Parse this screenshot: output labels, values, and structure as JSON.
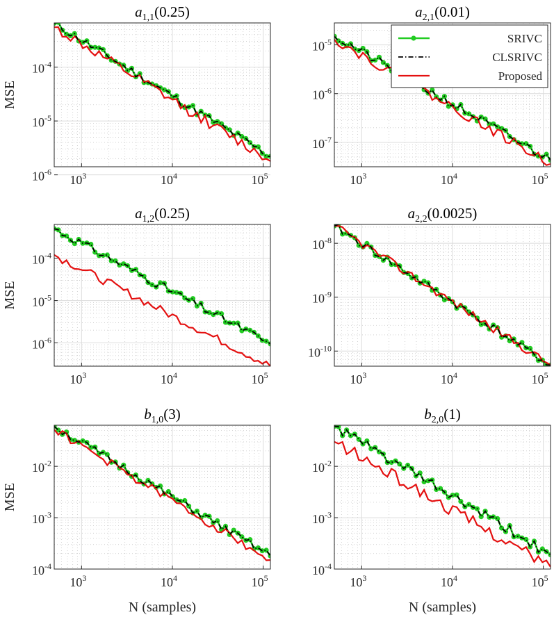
{
  "figure": {
    "xlabel": "N (samples)",
    "ylabel": "MSE",
    "colors": {
      "srivc": "#22cc22",
      "clsrivc": "#000000",
      "proposed": "#e41010"
    }
  },
  "legend": {
    "position": "top-right of panel 2",
    "entries": [
      "SRIVC",
      "CLSRIVC",
      "Proposed"
    ]
  },
  "chart_data": [
    {
      "type": "line",
      "title_base": "a",
      "title_sub": "1,1",
      "title_arg": "(0.25)",
      "xscale": "log",
      "yscale": "log",
      "xlim": [
        500,
        120000
      ],
      "ylim_log10": [
        -5.85,
        -3.18
      ],
      "yticks": [
        -6,
        -5,
        -4
      ],
      "ytick_labels": [
        "10-6",
        "10-5",
        "10-4"
      ],
      "xticks": [
        3,
        4,
        5
      ],
      "xtick_labels": [
        "103",
        "104",
        "105"
      ],
      "series": [
        {
          "name": "SRIVC",
          "start": 0.00065,
          "end": 2.2e-06,
          "noise": 0.04,
          "seed": 11
        },
        {
          "name": "CLSRIVC",
          "start": 0.00065,
          "end": 2.2e-06,
          "noise": 0.04,
          "seed": 11
        },
        {
          "name": "Proposed",
          "start": 0.00055,
          "end": 1.8e-06,
          "noise": 0.05,
          "seed": 12
        }
      ]
    },
    {
      "type": "line",
      "title_base": "a",
      "title_sub": "2,1",
      "title_arg": "(0.01)",
      "xscale": "log",
      "yscale": "log",
      "xlim": [
        500,
        120000
      ],
      "ylim_log10": [
        -7.5,
        -4.55
      ],
      "yticks": [
        -7,
        -6,
        -5
      ],
      "ytick_labels": [
        "10-7",
        "10-6",
        "10-5"
      ],
      "xticks": [
        3,
        4,
        5
      ],
      "xtick_labels": [
        "103",
        "104",
        "105"
      ],
      "series": [
        {
          "name": "SRIVC",
          "start": 1.5e-05,
          "end": 4.3e-08,
          "noise": 0.05,
          "seed": 21
        },
        {
          "name": "CLSRIVC",
          "start": 1.5e-05,
          "end": 4.3e-08,
          "noise": 0.05,
          "seed": 21
        },
        {
          "name": "Proposed",
          "start": 1.3e-05,
          "end": 3.6e-08,
          "noise": 0.05,
          "seed": 22
        }
      ]
    },
    {
      "type": "line",
      "title_base": "a",
      "title_sub": "1,2",
      "title_arg": "(0.25)",
      "xscale": "log",
      "yscale": "log",
      "xlim": [
        500,
        120000
      ],
      "ylim_log10": [
        -6.55,
        -3.2
      ],
      "yticks": [
        -6,
        -5,
        -4
      ],
      "ytick_labels": [
        "10-6",
        "10-5",
        "10-4"
      ],
      "xticks": [
        3,
        4,
        5
      ],
      "xtick_labels": [
        "103",
        "104",
        "105"
      ],
      "series": [
        {
          "name": "SRIVC",
          "start": 0.0005,
          "end": 9.5e-07,
          "noise": 0.05,
          "seed": 31
        },
        {
          "name": "CLSRIVC",
          "start": 0.0005,
          "end": 9.5e-07,
          "noise": 0.05,
          "seed": 31
        },
        {
          "name": "Proposed",
          "start": 0.00012,
          "end": 2.8e-07,
          "noise": 0.05,
          "seed": 32
        }
      ]
    },
    {
      "type": "line",
      "title_base": "a",
      "title_sub": "2,2",
      "title_arg": "(0.0025)",
      "xscale": "log",
      "yscale": "log",
      "xlim": [
        500,
        120000
      ],
      "ylim_log10": [
        -10.28,
        -7.65
      ],
      "yticks": [
        -10,
        -9,
        -8
      ],
      "ytick_labels": [
        "10-10",
        "10-9",
        "10-8"
      ],
      "xticks": [
        3,
        4,
        5
      ],
      "xtick_labels": [
        "103",
        "104",
        "105"
      ],
      "series": [
        {
          "name": "SRIVC",
          "start": 2.1e-08,
          "end": 5.5e-11,
          "noise": 0.04,
          "seed": 41
        },
        {
          "name": "CLSRIVC",
          "start": 2.1e-08,
          "end": 5.5e-11,
          "noise": 0.04,
          "seed": 41
        },
        {
          "name": "Proposed",
          "start": 2.1e-08,
          "end": 5.5e-11,
          "noise": 0.04,
          "seed": 42
        }
      ]
    },
    {
      "type": "line",
      "title_base": "b",
      "title_sub": "1,0",
      "title_arg": "(3)",
      "xscale": "log",
      "yscale": "log",
      "xlim": [
        500,
        120000
      ],
      "ylim_log10": [
        -4.0,
        -1.2
      ],
      "yticks": [
        -4,
        -3,
        -2
      ],
      "ytick_labels": [
        "10-4",
        "10-3",
        "10-2"
      ],
      "xticks": [
        3,
        4,
        5
      ],
      "xtick_labels": [
        "103",
        "104",
        "105"
      ],
      "series": [
        {
          "name": "SRIVC",
          "start": 0.06,
          "end": 0.00018,
          "noise": 0.04,
          "seed": 51
        },
        {
          "name": "CLSRIVC",
          "start": 0.06,
          "end": 0.00018,
          "noise": 0.04,
          "seed": 51
        },
        {
          "name": "Proposed",
          "start": 0.052,
          "end": 0.00015,
          "noise": 0.04,
          "seed": 52
        }
      ]
    },
    {
      "type": "line",
      "title_base": "b",
      "title_sub": "2,0",
      "title_arg": "(1)",
      "xscale": "log",
      "yscale": "log",
      "xlim": [
        500,
        120000
      ],
      "ylim_log10": [
        -4.0,
        -1.2
      ],
      "yticks": [
        -4,
        -3,
        -2
      ],
      "ytick_labels": [
        "10-4",
        "10-3",
        "10-2"
      ],
      "xticks": [
        3,
        4,
        5
      ],
      "xtick_labels": [
        "103",
        "104",
        "105"
      ],
      "series": [
        {
          "name": "SRIVC",
          "start": 0.06,
          "end": 0.00019,
          "noise": 0.05,
          "seed": 61
        },
        {
          "name": "CLSRIVC",
          "start": 0.06,
          "end": 0.00019,
          "noise": 0.05,
          "seed": 61
        },
        {
          "name": "Proposed",
          "start": 0.03,
          "end": 0.00011,
          "noise": 0.06,
          "seed": 62
        }
      ]
    }
  ]
}
